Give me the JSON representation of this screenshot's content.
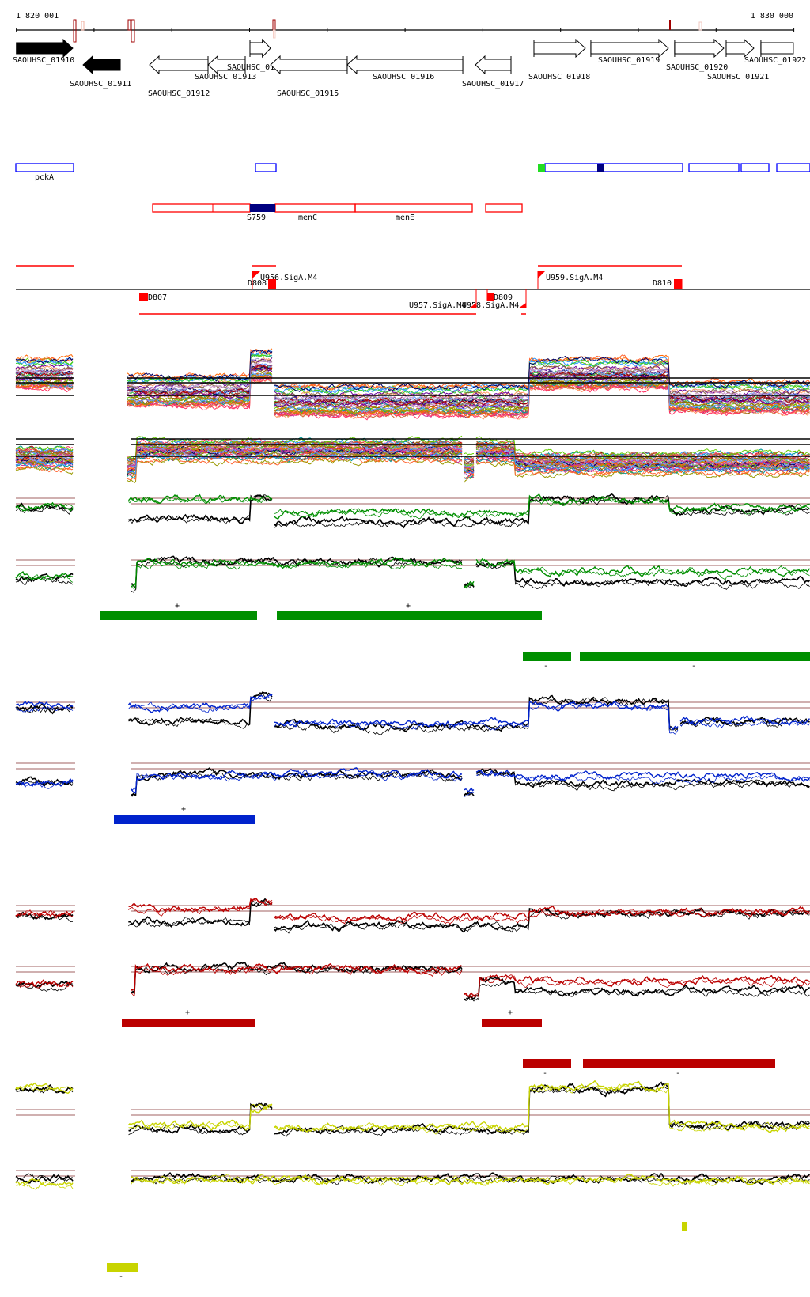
{
  "chart_data": {
    "type": "line",
    "title": "",
    "axis": {
      "start_label": "1 820 001",
      "end_label": "1 830 000",
      "range": [
        1820001,
        1830000
      ],
      "tick_interval": 1000
    },
    "genes": [
      {
        "name": "SAOUHSC_01910",
        "start": 1820001,
        "end": 1820726,
        "strand": "+",
        "highlight": true
      },
      {
        "name": "SAOUHSC_01911",
        "start": 1820859,
        "end": 1821337,
        "strand": "-",
        "highlight": true
      },
      {
        "name": "SAOUHSC_01912",
        "start": 1821713,
        "end": 1822466,
        "strand": "-",
        "highlight": false
      },
      {
        "name": "SAOUHSC_01913",
        "start": 1822466,
        "end": 1822944,
        "strand": "-",
        "highlight": false
      },
      {
        "name": "SAOUHSC_01914",
        "start": 1823005,
        "end": 1823270,
        "strand": "+",
        "highlight": false
      },
      {
        "name": "SAOUHSC_01915",
        "start": 1823270,
        "end": 1824256,
        "strand": "-",
        "highlight": false
      },
      {
        "name": "SAOUHSC_01916",
        "start": 1824256,
        "end": 1825742,
        "strand": "-",
        "highlight": false
      },
      {
        "name": "SAOUHSC_01917",
        "start": 1825904,
        "end": 1826362,
        "strand": "-",
        "highlight": false
      },
      {
        "name": "SAOUHSC_01918",
        "start": 1826657,
        "end": 1827318,
        "strand": "+",
        "highlight": false
      },
      {
        "name": "SAOUHSC_01919",
        "start": 1827389,
        "end": 1828386,
        "strand": "+",
        "highlight": false
      },
      {
        "name": "SAOUHSC_01920",
        "start": 1828467,
        "end": 1829098,
        "strand": "+",
        "highlight": false
      },
      {
        "name": "SAOUHSC_01921",
        "start": 1829129,
        "end": 1829485,
        "strand": "+",
        "highlight": false
      },
      {
        "name": "SAOUHSC_01922",
        "start": 1829576,
        "end": 1829993,
        "strand": "+",
        "highlight": false
      }
    ],
    "forward_feature_labels": [
      "pckA"
    ],
    "reverse_feature_labels": [
      "S759",
      "menC",
      "menE"
    ],
    "regulatory_labels": {
      "upper": [
        "U956.SigA.M4",
        "D808",
        "U959.SigA.M4",
        "D810"
      ],
      "lower": [
        "D807",
        "U957.SigA.M4",
        "U958.SigA.M4",
        "D809"
      ]
    },
    "signal_tracks": [
      {
        "color": "#008000"
      },
      {
        "color": "#0022cc"
      },
      {
        "color": "#c00000"
      },
      {
        "color": "#c8d400"
      }
    ],
    "segment_marks": {
      "green_plus": "+",
      "green_minus": "-",
      "blue_plus": "+",
      "red_plus": "+",
      "red_minus": "-",
      "yellow_minus": "-"
    },
    "colors": {
      "forward_features": "#0000ff",
      "reverse_features": "#ff0000",
      "guide_lines": "#a06060",
      "green": "#008f00",
      "blue": "#0022cc",
      "red": "#bb0000",
      "yellow": "#c8d400"
    }
  }
}
